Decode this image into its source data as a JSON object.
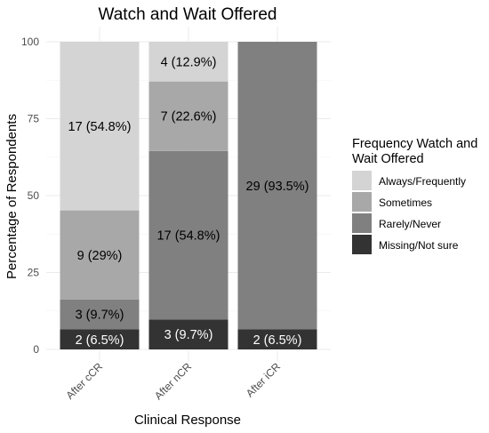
{
  "chart_data": {
    "type": "bar",
    "stacked": true,
    "title": "Watch and Wait Offered",
    "xlabel": "Clinical Response",
    "ylabel": "Percentage of Respondents",
    "ylim": [
      0,
      100
    ],
    "yticks": [
      0,
      25,
      50,
      75,
      100
    ],
    "categories": [
      "After cCR",
      "After nCR",
      "After iCR"
    ],
    "legend": {
      "title_lines": [
        "Frequency Watch and",
        "Wait Offered"
      ],
      "position": "right"
    },
    "series": [
      {
        "name": "Always/Frequently",
        "color": "#d4d4d4",
        "values": [
          54.8,
          12.9,
          0
        ],
        "labels": [
          "17 (54.8%)",
          "4 (12.9%)",
          ""
        ],
        "label_color": "#000000"
      },
      {
        "name": "Sometimes",
        "color": "#a8a8a8",
        "values": [
          29,
          22.6,
          0
        ],
        "labels": [
          "9 (29%)",
          "7 (22.6%)",
          ""
        ],
        "label_color": "#000000"
      },
      {
        "name": "Rarely/Never",
        "color": "#808080",
        "values": [
          9.7,
          54.8,
          93.5
        ],
        "labels": [
          "3 (9.7%)",
          "17 (54.8%)",
          "29 (93.5%)"
        ],
        "label_color": "#000000"
      },
      {
        "name": "Missing/Not sure",
        "color": "#333333",
        "values": [
          6.5,
          9.7,
          6.5
        ],
        "labels": [
          "2 (6.5%)",
          "3 (9.7%)",
          "2 (6.5%)"
        ],
        "label_color": "#ffffff"
      }
    ],
    "grid": true
  }
}
